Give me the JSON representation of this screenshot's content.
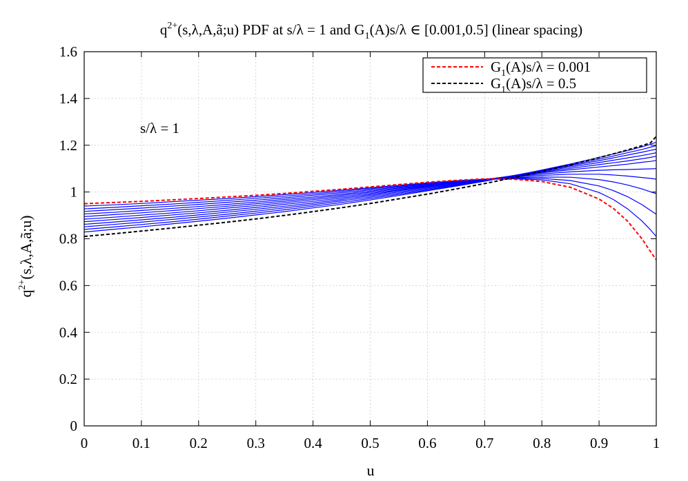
{
  "chart_data": {
    "type": "line",
    "title": "q2+(s,λ,A,ã;u) PDF at s/λ = 1 and G1(A)s/λ ∈ [0.001,0.5] (linear spacing)",
    "title_parts": {
      "a": "q",
      "a_sup": "2+",
      "b": "(s,λ,A,ã;u) PDF at s/λ = 1 and G",
      "b_sub": "1",
      "c": "(A)s/λ ∈ [0.001,0.5] (linear spacing)"
    },
    "xlabel": "u",
    "ylabel": "q2+(s,λ,A,ã;u)",
    "ylabel_parts": {
      "a": "q",
      "a_sup": "2+",
      "b": "(s,λ,A,ã;u)"
    },
    "annotation": "s/λ = 1",
    "xlim": [
      0,
      1
    ],
    "ylim": [
      0,
      1.6
    ],
    "x_ticks": [
      0,
      0.1,
      0.2,
      0.3,
      0.4,
      0.5,
      0.6,
      0.7,
      0.8,
      0.9,
      1
    ],
    "x_tick_labels": [
      "0",
      "0.1",
      "0.2",
      "0.3",
      "0.4",
      "0.5",
      "0.6",
      "0.7",
      "0.8",
      "0.9",
      "1"
    ],
    "y_ticks": [
      0,
      0.2,
      0.4,
      0.6,
      0.8,
      1.0,
      1.2,
      1.4,
      1.6
    ],
    "y_tick_labels": [
      "0",
      "0.2",
      "0.4",
      "0.6",
      "0.8",
      "1",
      "1.2",
      "1.4",
      "1.6"
    ],
    "grid": true,
    "legend_placement": "top-right",
    "legend": [
      {
        "label": "G1(A)s/λ = 0.001",
        "prefix": "G",
        "sub": "1",
        "suffix": "(A)s/λ = 0.001",
        "color": "#ff0000",
        "style": "dashed"
      },
      {
        "label": "G1(A)s/λ = 0.5",
        "prefix": "G",
        "sub": "1",
        "suffix": "(A)s/λ = 0.5",
        "color": "#000000",
        "style": "dashed"
      }
    ],
    "x": [
      0,
      0.05,
      0.1,
      0.15,
      0.2,
      0.25,
      0.3,
      0.35,
      0.4,
      0.45,
      0.5,
      0.55,
      0.6,
      0.65,
      0.7,
      0.75,
      0.8,
      0.85,
      0.9,
      0.925,
      0.95,
      0.975,
      0.99,
      1.0
    ],
    "series": [
      {
        "name": "G1(A)s/λ = 0.001",
        "color": "#ff0000",
        "style": "dashed",
        "values": [
          0.95,
          0.955,
          0.96,
          0.966,
          0.972,
          0.979,
          0.986,
          0.994,
          1.003,
          1.012,
          1.022,
          1.032,
          1.042,
          1.05,
          1.056,
          1.055,
          1.045,
          1.02,
          0.97,
          0.93,
          0.875,
          0.8,
          0.745,
          0.71
        ]
      },
      {
        "color": "#0000ff",
        "style": "solid",
        "values": [
          0.94,
          0.945,
          0.951,
          0.958,
          0.965,
          0.972,
          0.98,
          0.989,
          0.998,
          1.008,
          1.018,
          1.029,
          1.039,
          1.048,
          1.055,
          1.057,
          1.052,
          1.035,
          0.998,
          0.968,
          0.928,
          0.876,
          0.838,
          0.81
        ]
      },
      {
        "color": "#0000ff",
        "style": "solid",
        "values": [
          0.928,
          0.934,
          0.941,
          0.948,
          0.956,
          0.964,
          0.973,
          0.982,
          0.992,
          1.003,
          1.014,
          1.025,
          1.036,
          1.046,
          1.054,
          1.059,
          1.058,
          1.049,
          1.026,
          1.006,
          0.98,
          0.946,
          0.921,
          0.905
        ]
      },
      {
        "color": "#0000ff",
        "style": "solid",
        "values": [
          0.917,
          0.924,
          0.931,
          0.939,
          0.947,
          0.956,
          0.965,
          0.975,
          0.986,
          0.997,
          1.009,
          1.021,
          1.033,
          1.044,
          1.054,
          1.061,
          1.064,
          1.063,
          1.053,
          1.043,
          1.03,
          1.013,
          1.001,
          0.993
        ]
      },
      {
        "color": "#0000ff",
        "style": "solid",
        "values": [
          0.906,
          0.913,
          0.921,
          0.929,
          0.938,
          0.947,
          0.957,
          0.968,
          0.979,
          0.991,
          1.004,
          1.017,
          1.03,
          1.042,
          1.054,
          1.064,
          1.071,
          1.076,
          1.076,
          1.073,
          1.068,
          1.062,
          1.058,
          1.055
        ]
      },
      {
        "color": "#0000ff",
        "style": "solid",
        "values": [
          0.895,
          0.903,
          0.911,
          0.92,
          0.929,
          0.939,
          0.95,
          0.961,
          0.973,
          0.986,
          0.999,
          1.013,
          1.027,
          1.041,
          1.054,
          1.066,
          1.077,
          1.086,
          1.093,
          1.095,
          1.096,
          1.098,
          1.099,
          1.1
        ]
      },
      {
        "color": "#0000ff",
        "style": "solid",
        "values": [
          0.884,
          0.892,
          0.901,
          0.91,
          0.92,
          0.931,
          0.942,
          0.954,
          0.967,
          0.98,
          0.994,
          1.009,
          1.024,
          1.039,
          1.054,
          1.068,
          1.082,
          1.095,
          1.107,
          1.113,
          1.119,
          1.127,
          1.131,
          1.135
        ]
      },
      {
        "color": "#0000ff",
        "style": "solid",
        "values": [
          0.873,
          0.882,
          0.891,
          0.901,
          0.911,
          0.922,
          0.934,
          0.947,
          0.96,
          0.974,
          0.989,
          1.005,
          1.021,
          1.037,
          1.053,
          1.069,
          1.085,
          1.101,
          1.117,
          1.125,
          1.133,
          1.142,
          1.148,
          1.153
        ]
      },
      {
        "color": "#0000ff",
        "style": "solid",
        "values": [
          0.862,
          0.871,
          0.881,
          0.891,
          0.902,
          0.914,
          0.926,
          0.939,
          0.953,
          0.968,
          0.984,
          1.0,
          1.017,
          1.034,
          1.052,
          1.07,
          1.088,
          1.107,
          1.126,
          1.136,
          1.146,
          1.156,
          1.163,
          1.168
        ]
      },
      {
        "color": "#0000ff",
        "style": "solid",
        "values": [
          0.851,
          0.861,
          0.871,
          0.882,
          0.893,
          0.905,
          0.918,
          0.932,
          0.946,
          0.962,
          0.978,
          0.995,
          1.013,
          1.031,
          1.05,
          1.07,
          1.091,
          1.112,
          1.134,
          1.146,
          1.158,
          1.17,
          1.178,
          1.183
        ]
      },
      {
        "color": "#0000ff",
        "style": "solid",
        "values": [
          0.84,
          0.85,
          0.861,
          0.872,
          0.884,
          0.897,
          0.91,
          0.924,
          0.939,
          0.955,
          0.972,
          0.99,
          1.009,
          1.028,
          1.048,
          1.07,
          1.093,
          1.116,
          1.141,
          1.154,
          1.168,
          1.182,
          1.192,
          1.198
        ]
      },
      {
        "color": "#0000ff",
        "style": "solid",
        "values": [
          0.829,
          0.84,
          0.851,
          0.863,
          0.875,
          0.888,
          0.902,
          0.916,
          0.932,
          0.948,
          0.966,
          0.985,
          1.005,
          1.025,
          1.046,
          1.069,
          1.094,
          1.12,
          1.148,
          1.162,
          1.177,
          1.193,
          1.204,
          1.213
        ]
      },
      {
        "name": "G1(A)s/λ = 0.5",
        "color": "#000000",
        "style": "dashed",
        "values": [
          0.81,
          0.821,
          0.833,
          0.845,
          0.858,
          0.871,
          0.885,
          0.9,
          0.916,
          0.933,
          0.951,
          0.971,
          0.991,
          1.013,
          1.036,
          1.061,
          1.088,
          1.116,
          1.147,
          1.163,
          1.18,
          1.198,
          1.21,
          1.238
        ]
      }
    ]
  }
}
